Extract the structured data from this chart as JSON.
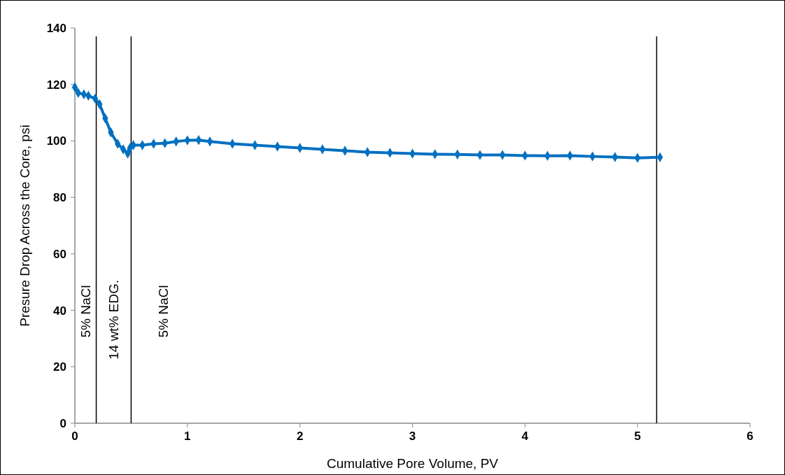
{
  "chart_data": {
    "type": "line",
    "xlabel": "Cumulative Pore Volume, PV",
    "ylabel": "Presure Drop Across the Core, psi",
    "xlim": [
      0,
      6
    ],
    "xticks": [
      0,
      1,
      2,
      3,
      4,
      5,
      6
    ],
    "ylim": [
      0,
      140
    ],
    "yticks": [
      0,
      20,
      40,
      60,
      80,
      100,
      120,
      140
    ],
    "grid": false,
    "marker": "diamond",
    "x": [
      0,
      0.03,
      0.08,
      0.12,
      0.18,
      0.22,
      0.27,
      0.32,
      0.38,
      0.43,
      0.47,
      0.49,
      0.52,
      0.6,
      0.7,
      0.8,
      0.9,
      1.0,
      1.1,
      1.2,
      1.4,
      1.6,
      1.8,
      2.0,
      2.2,
      2.4,
      2.6,
      2.8,
      3.0,
      3.2,
      3.4,
      3.6,
      3.8,
      4.0,
      4.2,
      4.4,
      4.6,
      4.8,
      5.0,
      5.2
    ],
    "series": [
      {
        "color": "#0070c0",
        "values": [
          119,
          117,
          116.5,
          116,
          115,
          113,
          108,
          103,
          99,
          97,
          95.5,
          97.5,
          98.5,
          98.5,
          99,
          99.2,
          99.8,
          100.2,
          100.3,
          99.8,
          99,
          98.5,
          98,
          97.5,
          97,
          96.5,
          96,
          95.8,
          95.5,
          95.3,
          95.2,
          95,
          95,
          94.8,
          94.7,
          94.8,
          94.5,
          94.3,
          94,
          94.2
        ]
      }
    ],
    "ref_lines": [
      {
        "axis": "x",
        "value": 0.19,
        "color": "#000000"
      },
      {
        "axis": "x",
        "value": 0.5,
        "color": "#000000"
      },
      {
        "axis": "x",
        "value": 5.17,
        "color": "#000000"
      }
    ],
    "annotations": [
      "5% NaCl",
      "14 wt% EDG.",
      "5% NaCl"
    ]
  }
}
